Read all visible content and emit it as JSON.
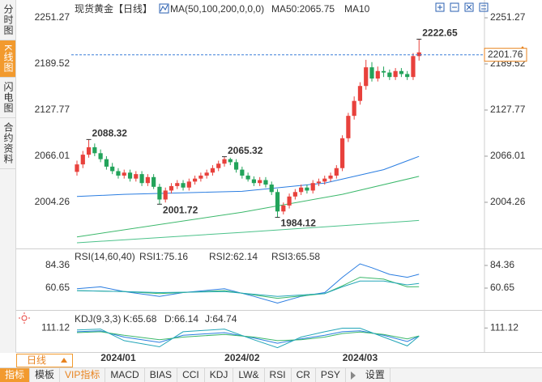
{
  "chart_data": [
    {
      "type": "candlestick",
      "title": "现货黄金【日线】",
      "indicator": "MA(50,100,200,0,0,0)",
      "categories": [
        null,
        null,
        null,
        null,
        null,
        null,
        null,
        "2024/01",
        null,
        null,
        null,
        null,
        null,
        null,
        null,
        null,
        null,
        null,
        null,
        null,
        null,
        null,
        null,
        null,
        null,
        null,
        null,
        null,
        "2024/02",
        null,
        null,
        null,
        null,
        null,
        null,
        null,
        null,
        null,
        null,
        null,
        null,
        null,
        null,
        null,
        null,
        null,
        null,
        null,
        "2024/03",
        null,
        null,
        null,
        null,
        null,
        null,
        null,
        null,
        null,
        null
      ],
      "open": [
        2045,
        2055,
        2068,
        2078,
        2070,
        2062,
        2052,
        2046,
        2040,
        2044,
        2036,
        2042,
        2030,
        2038,
        2025,
        2008,
        2020,
        2026,
        2030,
        2024,
        2032,
        2036,
        2040,
        2044,
        2050,
        2056,
        2062,
        2058,
        2048,
        2040,
        2035,
        2030,
        2034,
        2028,
        2018,
        1992,
        2000,
        2012,
        2018,
        2024,
        2020,
        2030,
        2032,
        2036,
        2040,
        2050,
        2090,
        2120,
        2140,
        2160,
        2185,
        2170,
        2180,
        2178,
        2172,
        2180,
        2176,
        2172,
        2200
      ],
      "high": [
        2060,
        2073,
        2088.32,
        2083,
        2075,
        2066,
        2057,
        2050,
        2048,
        2048,
        2046,
        2046,
        2042,
        2042,
        2029,
        2024,
        2030,
        2034,
        2034,
        2036,
        2040,
        2044,
        2048,
        2054,
        2060,
        2065.32,
        2064,
        2062,
        2052,
        2044,
        2039,
        2038,
        2038,
        2032,
        2022,
        2004,
        2016,
        2022,
        2028,
        2028,
        2034,
        2036,
        2040,
        2044,
        2054,
        2094,
        2124,
        2146,
        2165,
        2195,
        2192,
        2186,
        2186,
        2182,
        2184,
        2184,
        2180,
        2204,
        2222.65
      ],
      "low": [
        2040,
        2050,
        2064,
        2066,
        2058,
        2048,
        2042,
        2036,
        2036,
        2032,
        2032,
        2026,
        2026,
        2022,
        2001.72,
        2004,
        2016,
        2022,
        2020,
        2020,
        2028,
        2032,
        2036,
        2040,
        2046,
        2052,
        2054,
        2044,
        2036,
        2032,
        2026,
        2026,
        2024,
        2014,
        1984.12,
        1988,
        1996,
        2008,
        2014,
        2016,
        2016,
        2026,
        2028,
        2032,
        2036,
        2046,
        2085,
        2115,
        2135,
        2155,
        2166,
        2166,
        2172,
        2168,
        2168,
        2172,
        2168,
        2168,
        2194
      ],
      "close": [
        2055,
        2068,
        2078,
        2070,
        2062,
        2052,
        2046,
        2040,
        2044,
        2036,
        2042,
        2030,
        2038,
        2025,
        2008,
        2020,
        2026,
        2030,
        2024,
        2032,
        2036,
        2040,
        2044,
        2050,
        2056,
        2062,
        2058,
        2048,
        2040,
        2035,
        2030,
        2034,
        2028,
        2018,
        1992,
        2000,
        2012,
        2018,
        2024,
        2020,
        2030,
        2032,
        2036,
        2040,
        2050,
        2090,
        2120,
        2140,
        2160,
        2185,
        2170,
        2180,
        2178,
        2172,
        2180,
        2176,
        2172,
        2200,
        2205
      ],
      "up_color": "#e8413c",
      "down_color": "#22a35a",
      "ylim": [
        1943,
        2266
      ],
      "yticks": [
        2004.26,
        2066.01,
        2127.77,
        2189.52,
        2251.27
      ],
      "last_price": 2201.76,
      "series": [
        {
          "name": "MA50:2065.75",
          "color": "#2a7de1",
          "x": [
            0,
            8,
            28,
            42,
            52,
            58
          ],
          "values": [
            2012,
            2015,
            2019,
            2030,
            2048,
            2065.75
          ]
        },
        {
          "name": "MA10",
          "color": "#3bb86b",
          "x": [
            0,
            28,
            45,
            58
          ],
          "values": [
            1958,
            1991,
            2015,
            2039
          ]
        },
        {
          "color": "#4cc28a",
          "x": [
            0,
            28,
            58
          ],
          "values": [
            1950,
            1964,
            1980
          ]
        }
      ]
    },
    {
      "type": "line",
      "title": "RSI(14,60,40)",
      "ylim": [
        40,
        100
      ],
      "yticks": [
        60.65,
        84.36
      ],
      "series": [
        {
          "name": "RSI1:75.16",
          "color": "#2a7de1",
          "x": [
            0,
            4,
            8,
            14,
            18,
            25,
            30,
            34,
            38,
            42,
            45,
            48,
            50,
            53,
            56,
            58
          ],
          "values": [
            60,
            62,
            57,
            52,
            56,
            60,
            52,
            45,
            52,
            56,
            72,
            86,
            82,
            75,
            72,
            75.16
          ]
        },
        {
          "name": "RSI2:62.14",
          "color": "#3bb86b",
          "x": [
            0,
            8,
            14,
            25,
            34,
            42,
            45,
            48,
            52,
            56,
            58
          ],
          "values": [
            58,
            57,
            55,
            58,
            50,
            55,
            63,
            72,
            70,
            62,
            62.14
          ]
        },
        {
          "name": "RSI3:65.58",
          "color": "#23a6b8",
          "x": [
            0,
            8,
            14,
            25,
            34,
            42,
            45,
            48,
            52,
            56,
            58
          ],
          "values": [
            58,
            57,
            56,
            57,
            52,
            55,
            62,
            68,
            68,
            64,
            65.58
          ]
        }
      ]
    },
    {
      "type": "line",
      "title": "KDJ(9,3,3)",
      "ylim": [
        -20,
        190
      ],
      "yticks": [
        111.12
      ],
      "series": [
        {
          "name": "K:65.68",
          "color": "#2a7de1",
          "x": [
            0,
            4,
            8,
            14,
            18,
            25,
            30,
            34,
            38,
            42,
            45,
            48,
            52,
            56,
            58
          ],
          "values": [
            90,
            95,
            60,
            30,
            70,
            85,
            55,
            25,
            50,
            70,
            90,
            95,
            70,
            35,
            65.68
          ]
        },
        {
          "name": "D:66.14",
          "color": "#3bb86b",
          "x": [
            0,
            4,
            8,
            14,
            18,
            25,
            30,
            34,
            38,
            42,
            45,
            48,
            52,
            56,
            58
          ],
          "values": [
            85,
            90,
            70,
            45,
            60,
            75,
            60,
            40,
            45,
            60,
            80,
            88,
            75,
            50,
            66.14
          ]
        },
        {
          "name": "J:64.74",
          "color": "#23a6b8",
          "x": [
            0,
            4,
            8,
            14,
            18,
            25,
            30,
            34,
            38,
            42,
            45,
            48,
            52,
            56,
            58
          ],
          "values": [
            100,
            105,
            40,
            5,
            90,
            105,
            45,
            0,
            60,
            90,
            110,
            110,
            60,
            10,
            64.74
          ]
        }
      ]
    }
  ],
  "ui": {
    "tabs": [
      "分时图",
      "K线图",
      "闪电图",
      "合约资料"
    ],
    "active_tab": 1,
    "period": "日线",
    "toolbar": [
      "指标",
      "模板",
      "VIP指标",
      "MACD",
      "BIAS",
      "CCI",
      "KDJ",
      "LW&",
      "RSI",
      "CR",
      "PSY",
      "设置"
    ],
    "active_tool": 0
  }
}
